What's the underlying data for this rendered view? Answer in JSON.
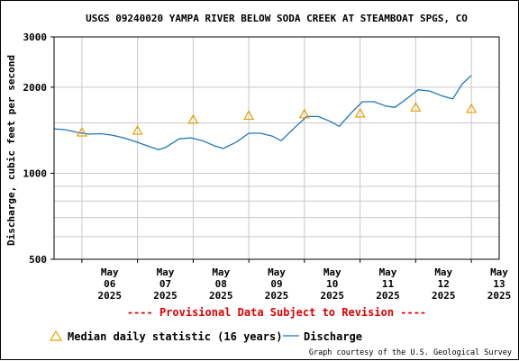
{
  "chart_data": {
    "type": "line",
    "title": "USGS 09240020 YAMPA RIVER BELOW SODA CREEK AT STEAMBOAT SPGS, CO",
    "ylabel": "Discharge, cubic feet per second",
    "xlabel": "",
    "y_scale": "log",
    "ylim": [
      500,
      3000
    ],
    "y_ticks": [
      {
        "value": 500,
        "label": "500"
      },
      {
        "value": 1000,
        "label": "1000"
      },
      {
        "value": 2000,
        "label": "2000"
      },
      {
        "value": 3000,
        "label": "3000"
      }
    ],
    "y_minor_gridlines": [
      600,
      700,
      800,
      900,
      1500
    ],
    "xlim": [
      "2025-05-05T12:00",
      "2025-05-13T12:00"
    ],
    "x_ticks": [
      {
        "date": "2025-05-06",
        "lines": [
          "May",
          "06",
          "2025"
        ]
      },
      {
        "date": "2025-05-07",
        "lines": [
          "May",
          "07",
          "2025"
        ]
      },
      {
        "date": "2025-05-08",
        "lines": [
          "May",
          "08",
          "2025"
        ]
      },
      {
        "date": "2025-05-09",
        "lines": [
          "May",
          "09",
          "2025"
        ]
      },
      {
        "date": "2025-05-10",
        "lines": [
          "May",
          "10",
          "2025"
        ]
      },
      {
        "date": "2025-05-11",
        "lines": [
          "May",
          "11",
          "2025"
        ]
      },
      {
        "date": "2025-05-12",
        "lines": [
          "May",
          "12",
          "2025"
        ]
      },
      {
        "date": "2025-05-13",
        "lines": [
          "May",
          "13",
          "2025"
        ]
      }
    ],
    "grid": true,
    "series": [
      {
        "name": "Discharge",
        "kind": "line",
        "color": "#1f77b4",
        "x": [
          "2025-05-05T12:00",
          "2025-05-05T17:00",
          "2025-05-05T22:00",
          "2025-05-06T03:00",
          "2025-05-06T08:00",
          "2025-05-06T13:00",
          "2025-05-06T18:00",
          "2025-05-06T23:00",
          "2025-05-07T04:00",
          "2025-05-07T09:00",
          "2025-05-07T12:00",
          "2025-05-07T18:00",
          "2025-05-07T23:00",
          "2025-05-08T04:00",
          "2025-05-08T09:00",
          "2025-05-08T13:00",
          "2025-05-08T19:00",
          "2025-05-09T00:00",
          "2025-05-09T05:00",
          "2025-05-09T10:00",
          "2025-05-09T14:00",
          "2025-05-09T20:00",
          "2025-05-10T01:00",
          "2025-05-10T06:00",
          "2025-05-10T11:00",
          "2025-05-10T15:00",
          "2025-05-10T20:00",
          "2025-05-11T01:00",
          "2025-05-11T06:00",
          "2025-05-11T11:00",
          "2025-05-11T15:00",
          "2025-05-11T20:00",
          "2025-05-12T01:00",
          "2025-05-12T06:00",
          "2025-05-12T11:00",
          "2025-05-12T16:00",
          "2025-05-12T20:00",
          "2025-05-13T00:00"
        ],
        "values": [
          1430,
          1420,
          1390,
          1370,
          1375,
          1360,
          1330,
          1290,
          1250,
          1210,
          1230,
          1320,
          1330,
          1300,
          1250,
          1220,
          1290,
          1380,
          1380,
          1350,
          1300,
          1450,
          1580,
          1580,
          1520,
          1460,
          1620,
          1780,
          1780,
          1720,
          1700,
          1820,
          1960,
          1940,
          1870,
          1820,
          2050,
          2200
        ]
      },
      {
        "name": "Median daily statistic (16 years)",
        "kind": "marker",
        "marker": "triangle",
        "color": "#e69f00",
        "x": [
          "2025-05-06T00:00",
          "2025-05-07T00:00",
          "2025-05-08T00:00",
          "2025-05-09T00:00",
          "2025-05-10T00:00",
          "2025-05-11T00:00",
          "2025-05-12T00:00",
          "2025-05-13T00:00"
        ],
        "values": [
          1390,
          1410,
          1540,
          1590,
          1610,
          1620,
          1700,
          1680
        ]
      }
    ],
    "legend_position": "bottom",
    "legend": [
      {
        "label": "Median daily statistic (16 years)",
        "symbol": "triangle"
      },
      {
        "label": "Discharge",
        "symbol": "line"
      }
    ],
    "annotations": {
      "provisional": "---- Provisional Data Subject to Revision ----",
      "credit": "Graph courtesy of the U.S. Geological Survey"
    }
  },
  "colors": {
    "discharge": "#1f77b4",
    "median": "#e69f00",
    "provisional": "#dd0000",
    "grid": "#c8c8c8",
    "axis": "#000000"
  }
}
